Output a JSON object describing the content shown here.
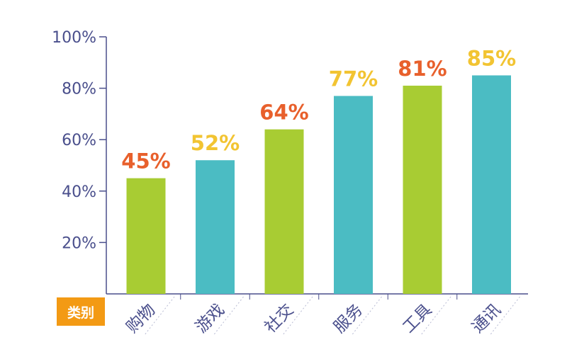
{
  "chart_data": {
    "type": "bar",
    "categories": [
      "购物",
      "游戏",
      "社交",
      "服务",
      "工具",
      "通讯"
    ],
    "values": [
      45,
      52,
      64,
      77,
      81,
      85
    ],
    "value_labels": [
      "45%",
      "52%",
      "64%",
      "77%",
      "81%",
      "85%"
    ],
    "xlabel": "类别",
    "ylabel": "",
    "ylim": [
      0,
      100
    ],
    "yticks": [
      "20%",
      "40%",
      "60%",
      "80%",
      "100%"
    ],
    "grid": false,
    "bar_colors": [
      "#a8cc33",
      "#4bbcc3",
      "#a8cc33",
      "#4bbcc3",
      "#a8cc33",
      "#4bbcc3"
    ],
    "label_colors": [
      "#e8602c",
      "#f2c432",
      "#e8602c",
      "#f2c432",
      "#e8602c",
      "#f2c432"
    ],
    "axis_color": "#4a4f8c",
    "xlabel_bg": "#f39a14"
  }
}
